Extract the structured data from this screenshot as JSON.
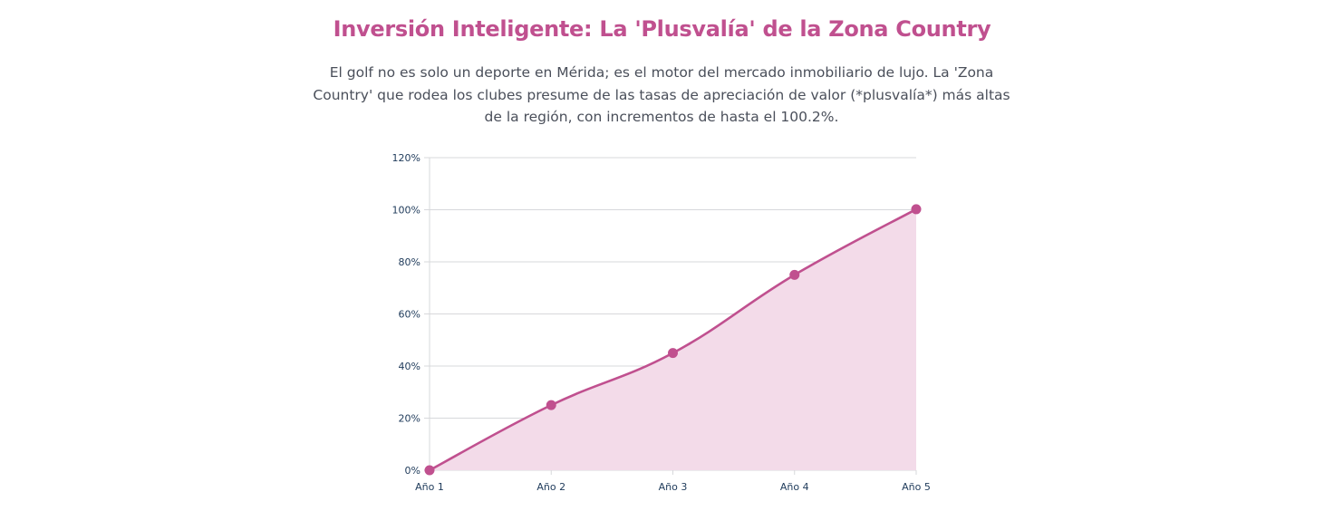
{
  "header": {
    "title": "Inversión Inteligente: La 'Plusvalía' de la Zona Country",
    "intro": "El golf no es solo un deporte en Mérida; es el motor del mercado inmobiliario de lujo. La 'Zona Country' que rodea los clubes presume de las tasas de apreciación de valor (*plusvalía*) más altas de la región, con incrementos de hasta el 100.2%."
  },
  "colors": {
    "accent": "#c0508f",
    "fill": "#f3dbe9",
    "grid": "#d7d8db",
    "tick_text": "#1e3a5a",
    "body_text": "#4a4f5a"
  },
  "chart_data": {
    "type": "area",
    "categories": [
      "Año 1",
      "Año 2",
      "Año 3",
      "Año 4",
      "Año 5"
    ],
    "series": [
      {
        "values": [
          0,
          25,
          45,
          75,
          100.2
        ]
      }
    ],
    "ylim": [
      0,
      120
    ],
    "yticks": [
      0,
      20,
      40,
      60,
      80,
      100,
      120
    ],
    "ytick_labels": [
      "0%",
      "20%",
      "40%",
      "60%",
      "80%",
      "100%",
      "120%"
    ],
    "grid": true,
    "legend": "none",
    "curve": "smooth"
  }
}
